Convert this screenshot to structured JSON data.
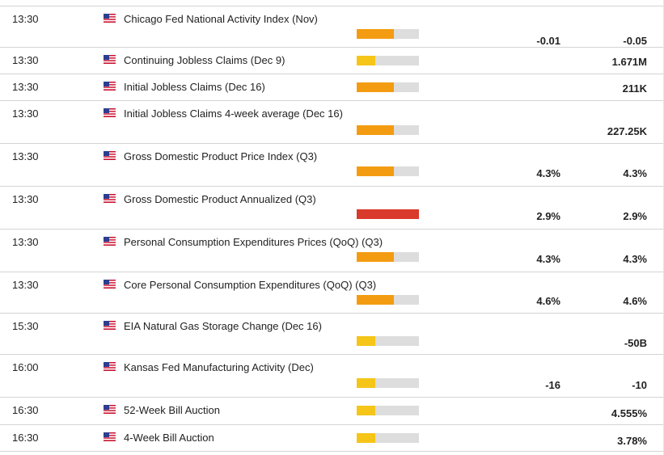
{
  "colors": {
    "medium_impact": "#f39c12",
    "low_impact": "#f5c518",
    "high_impact": "#d93a2b",
    "impact_track": "#dddddd"
  },
  "country_icon": "us-flag-icon",
  "events": [
    {
      "time": "13:30",
      "name": "Chicago Fed National Activity Index (Nov)",
      "impact": "medium",
      "impact_level": 0.6,
      "actual": "",
      "consensus": "-0.01",
      "previous": "-0.05"
    },
    {
      "time": "13:30",
      "name": "Continuing Jobless Claims (Dec 9)",
      "impact": "low",
      "impact_level": 0.3,
      "actual": "",
      "consensus": "",
      "previous": "1.671M"
    },
    {
      "time": "13:30",
      "name": "Initial Jobless Claims (Dec 16)",
      "impact": "medium",
      "impact_level": 0.6,
      "actual": "",
      "consensus": "",
      "previous": "211K"
    },
    {
      "time": "13:30",
      "name": "Initial Jobless Claims 4-week average (Dec 16)",
      "impact": "medium",
      "impact_level": 0.6,
      "actual": "",
      "consensus": "",
      "previous": "227.25K"
    },
    {
      "time": "13:30",
      "name": "Gross Domestic Product Price Index (Q3)",
      "impact": "medium",
      "impact_level": 0.6,
      "actual": "",
      "consensus": "4.3%",
      "previous": "4.3%"
    },
    {
      "time": "13:30",
      "name": "Gross Domestic Product Annualized (Q3)",
      "impact": "high",
      "impact_level": 1.0,
      "actual": "",
      "consensus": "2.9%",
      "previous": "2.9%"
    },
    {
      "time": "13:30",
      "name": "Personal Consumption Expenditures Prices (QoQ) (Q3)",
      "impact": "medium",
      "impact_level": 0.6,
      "actual": "",
      "consensus": "4.3%",
      "previous": "4.3%"
    },
    {
      "time": "13:30",
      "name": "Core Personal Consumption Expenditures (QoQ) (Q3)",
      "impact": "medium",
      "impact_level": 0.6,
      "actual": "",
      "consensus": "4.6%",
      "previous": "4.6%"
    },
    {
      "time": "15:30",
      "name": "EIA Natural Gas Storage Change (Dec 16)",
      "impact": "low",
      "impact_level": 0.3,
      "actual": "",
      "consensus": "",
      "previous": "-50B"
    },
    {
      "time": "16:00",
      "name": "Kansas Fed Manufacturing Activity (Dec)",
      "impact": "low",
      "impact_level": 0.3,
      "actual": "",
      "consensus": "-16",
      "previous": "-10"
    },
    {
      "time": "16:30",
      "name": "52-Week Bill Auction",
      "impact": "low",
      "impact_level": 0.3,
      "actual": "",
      "consensus": "",
      "previous": "4.555%"
    },
    {
      "time": "16:30",
      "name": "4-Week Bill Auction",
      "impact": "low",
      "impact_level": 0.3,
      "actual": "",
      "consensus": "",
      "previous": "3.78%"
    }
  ]
}
